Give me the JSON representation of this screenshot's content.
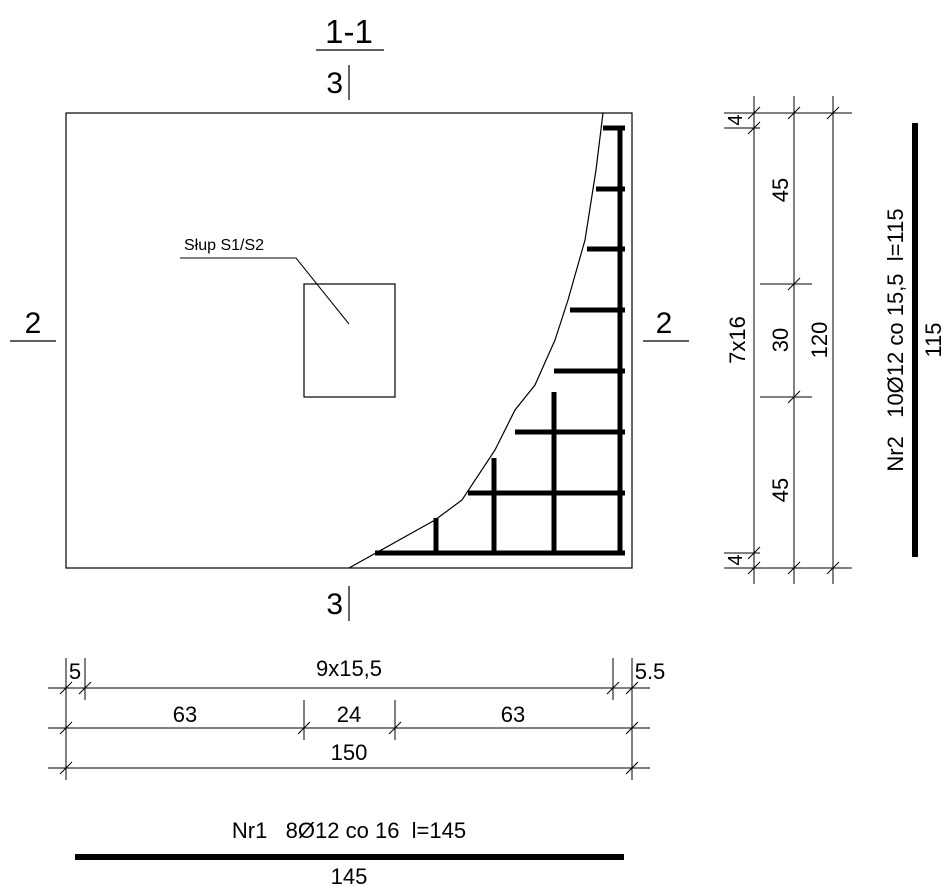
{
  "section_title": "1-1",
  "section_markers": {
    "top": "3",
    "bottom": "3",
    "left": "2",
    "right": "2"
  },
  "column_label": "Słup S1/S2",
  "bottom_dims": {
    "edge_left": "5",
    "spacing": "9x15,5",
    "edge_right": "5.5",
    "seg_left": "63",
    "seg_mid": "24",
    "seg_right": "63",
    "total": "150"
  },
  "right_dims": {
    "edge_top": "4",
    "seg_top": "45",
    "seg_mid": "30",
    "seg_bot": "45",
    "edge_bot": "4",
    "spacing": "7x16",
    "total": "120"
  },
  "bar_nr1": {
    "label": "Nr1   8Ø12 co 16  l=145",
    "length": "145"
  },
  "bar_nr2": {
    "label": "Nr2   10Ø12 co 15,5  l=115",
    "length": "115"
  }
}
